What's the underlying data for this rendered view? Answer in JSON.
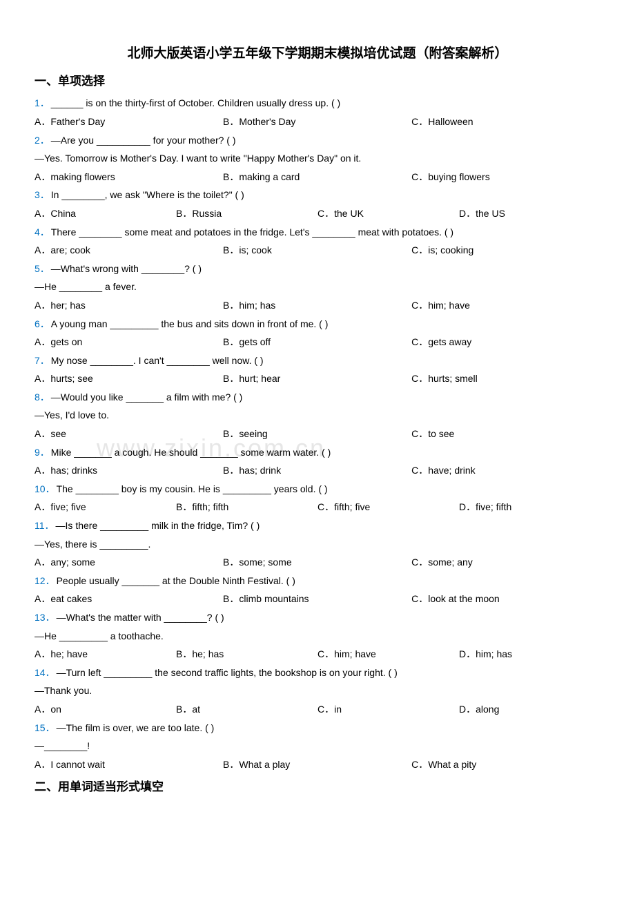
{
  "title": "北师大版英语小学五年级下学期期末模拟培优试题（附答案解析）",
  "section1": "一、单项选择",
  "section2": "二、用单词适当形式填空",
  "watermark": "www.zixin.com.cn",
  "questions": [
    {
      "num": "1．",
      "stem": "______ is on the thirty-first of October. Children usually dress up. (    )",
      "cols": 3,
      "opts": [
        "A．Father's Day",
        "B．Mother's Day",
        "C．Halloween"
      ]
    },
    {
      "num": "2．",
      "stem": "—Are you __________ for your mother? (    )",
      "cont": "—Yes. Tomorrow is Mother's Day. I want to write \"Happy Mother's Day\" on it.",
      "cols": 3,
      "opts": [
        "A．making flowers",
        "B．making a card",
        "C．buying flowers"
      ]
    },
    {
      "num": "3．",
      "stem": "In ________, we ask \"Where is the toilet?\" (    )",
      "cols": 4,
      "opts": [
        "A．China",
        "B．Russia",
        "C．the UK",
        "D．the US"
      ]
    },
    {
      "num": "4．",
      "stem": "There ________ some meat and potatoes in the fridge. Let's ________ meat with potatoes. (    )",
      "cols": 3,
      "opts": [
        "A．are; cook",
        "B．is; cook",
        "C．is; cooking"
      ]
    },
    {
      "num": "5．",
      "stem": "—What's wrong with ________? (    )",
      "cont": "—He ________ a fever.",
      "cols": 3,
      "opts": [
        "A．her; has",
        "B．him; has",
        "C．him; have"
      ]
    },
    {
      "num": "6．",
      "stem": "A young man _________ the bus and sits down in front of me. (     )",
      "cols": 3,
      "opts": [
        "A．gets on",
        "B．gets off",
        "C．gets away"
      ]
    },
    {
      "num": "7．",
      "stem": "My nose ________. I can't ________ well now. (     )",
      "cols": 3,
      "opts": [
        "A．hurts; see",
        "B．hurt; hear",
        "C．hurts; smell"
      ]
    },
    {
      "num": "8．",
      "stem": "—Would you like _______ a film with me? (    )",
      "cont": "—Yes, I'd love to.",
      "cols": 3,
      "opts": [
        "A．see",
        "B．seeing",
        "C．to see"
      ]
    },
    {
      "num": "9．",
      "stem": "Mike _______ a cough. He should _______ some warm water. (    )",
      "cols": 3,
      "opts": [
        "A．has; drinks",
        "B．has; drink",
        "C．have; drink"
      ]
    },
    {
      "num": "10．",
      "stem": "The ________ boy is my cousin. He is _________ years old. (    )",
      "cols": 4,
      "opts": [
        "A．five; five",
        "B．fifth; fifth",
        "C．fifth; five",
        "D．five; fifth"
      ]
    },
    {
      "num": "11．",
      "stem": "—Is there _________ milk in the fridge, Tim? (     )",
      "cont": "—Yes, there is _________.",
      "cols": 3,
      "opts": [
        "A．any; some",
        "B．some; some",
        "C．some; any"
      ]
    },
    {
      "num": "12．",
      "stem": "People usually _______ at the Double Ninth Festival. (    )",
      "cols": 3,
      "opts": [
        "A．eat cakes",
        "B．climb mountains",
        "C．look at the moon"
      ]
    },
    {
      "num": "13．",
      "stem": "—What's the matter with ________? (    )",
      "cont": "—He _________ a toothache.",
      "cols": 4,
      "opts": [
        "A．he; have",
        "B．he; has",
        "C．him; have",
        "D．him; has"
      ]
    },
    {
      "num": "14．",
      "stem": "—Turn left _________ the second traffic lights, the bookshop is on your right. (    )",
      "cont": "—Thank you.",
      "cols": 4,
      "opts": [
        "A．on",
        "B．at",
        "C．in",
        "D．along"
      ]
    },
    {
      "num": "15．",
      "stem": "—The film is over, we are too late. (    )",
      "cont": "—________!",
      "cols": 3,
      "opts": [
        "A．I cannot wait",
        "B．What a play",
        "C．What a pity"
      ]
    }
  ]
}
